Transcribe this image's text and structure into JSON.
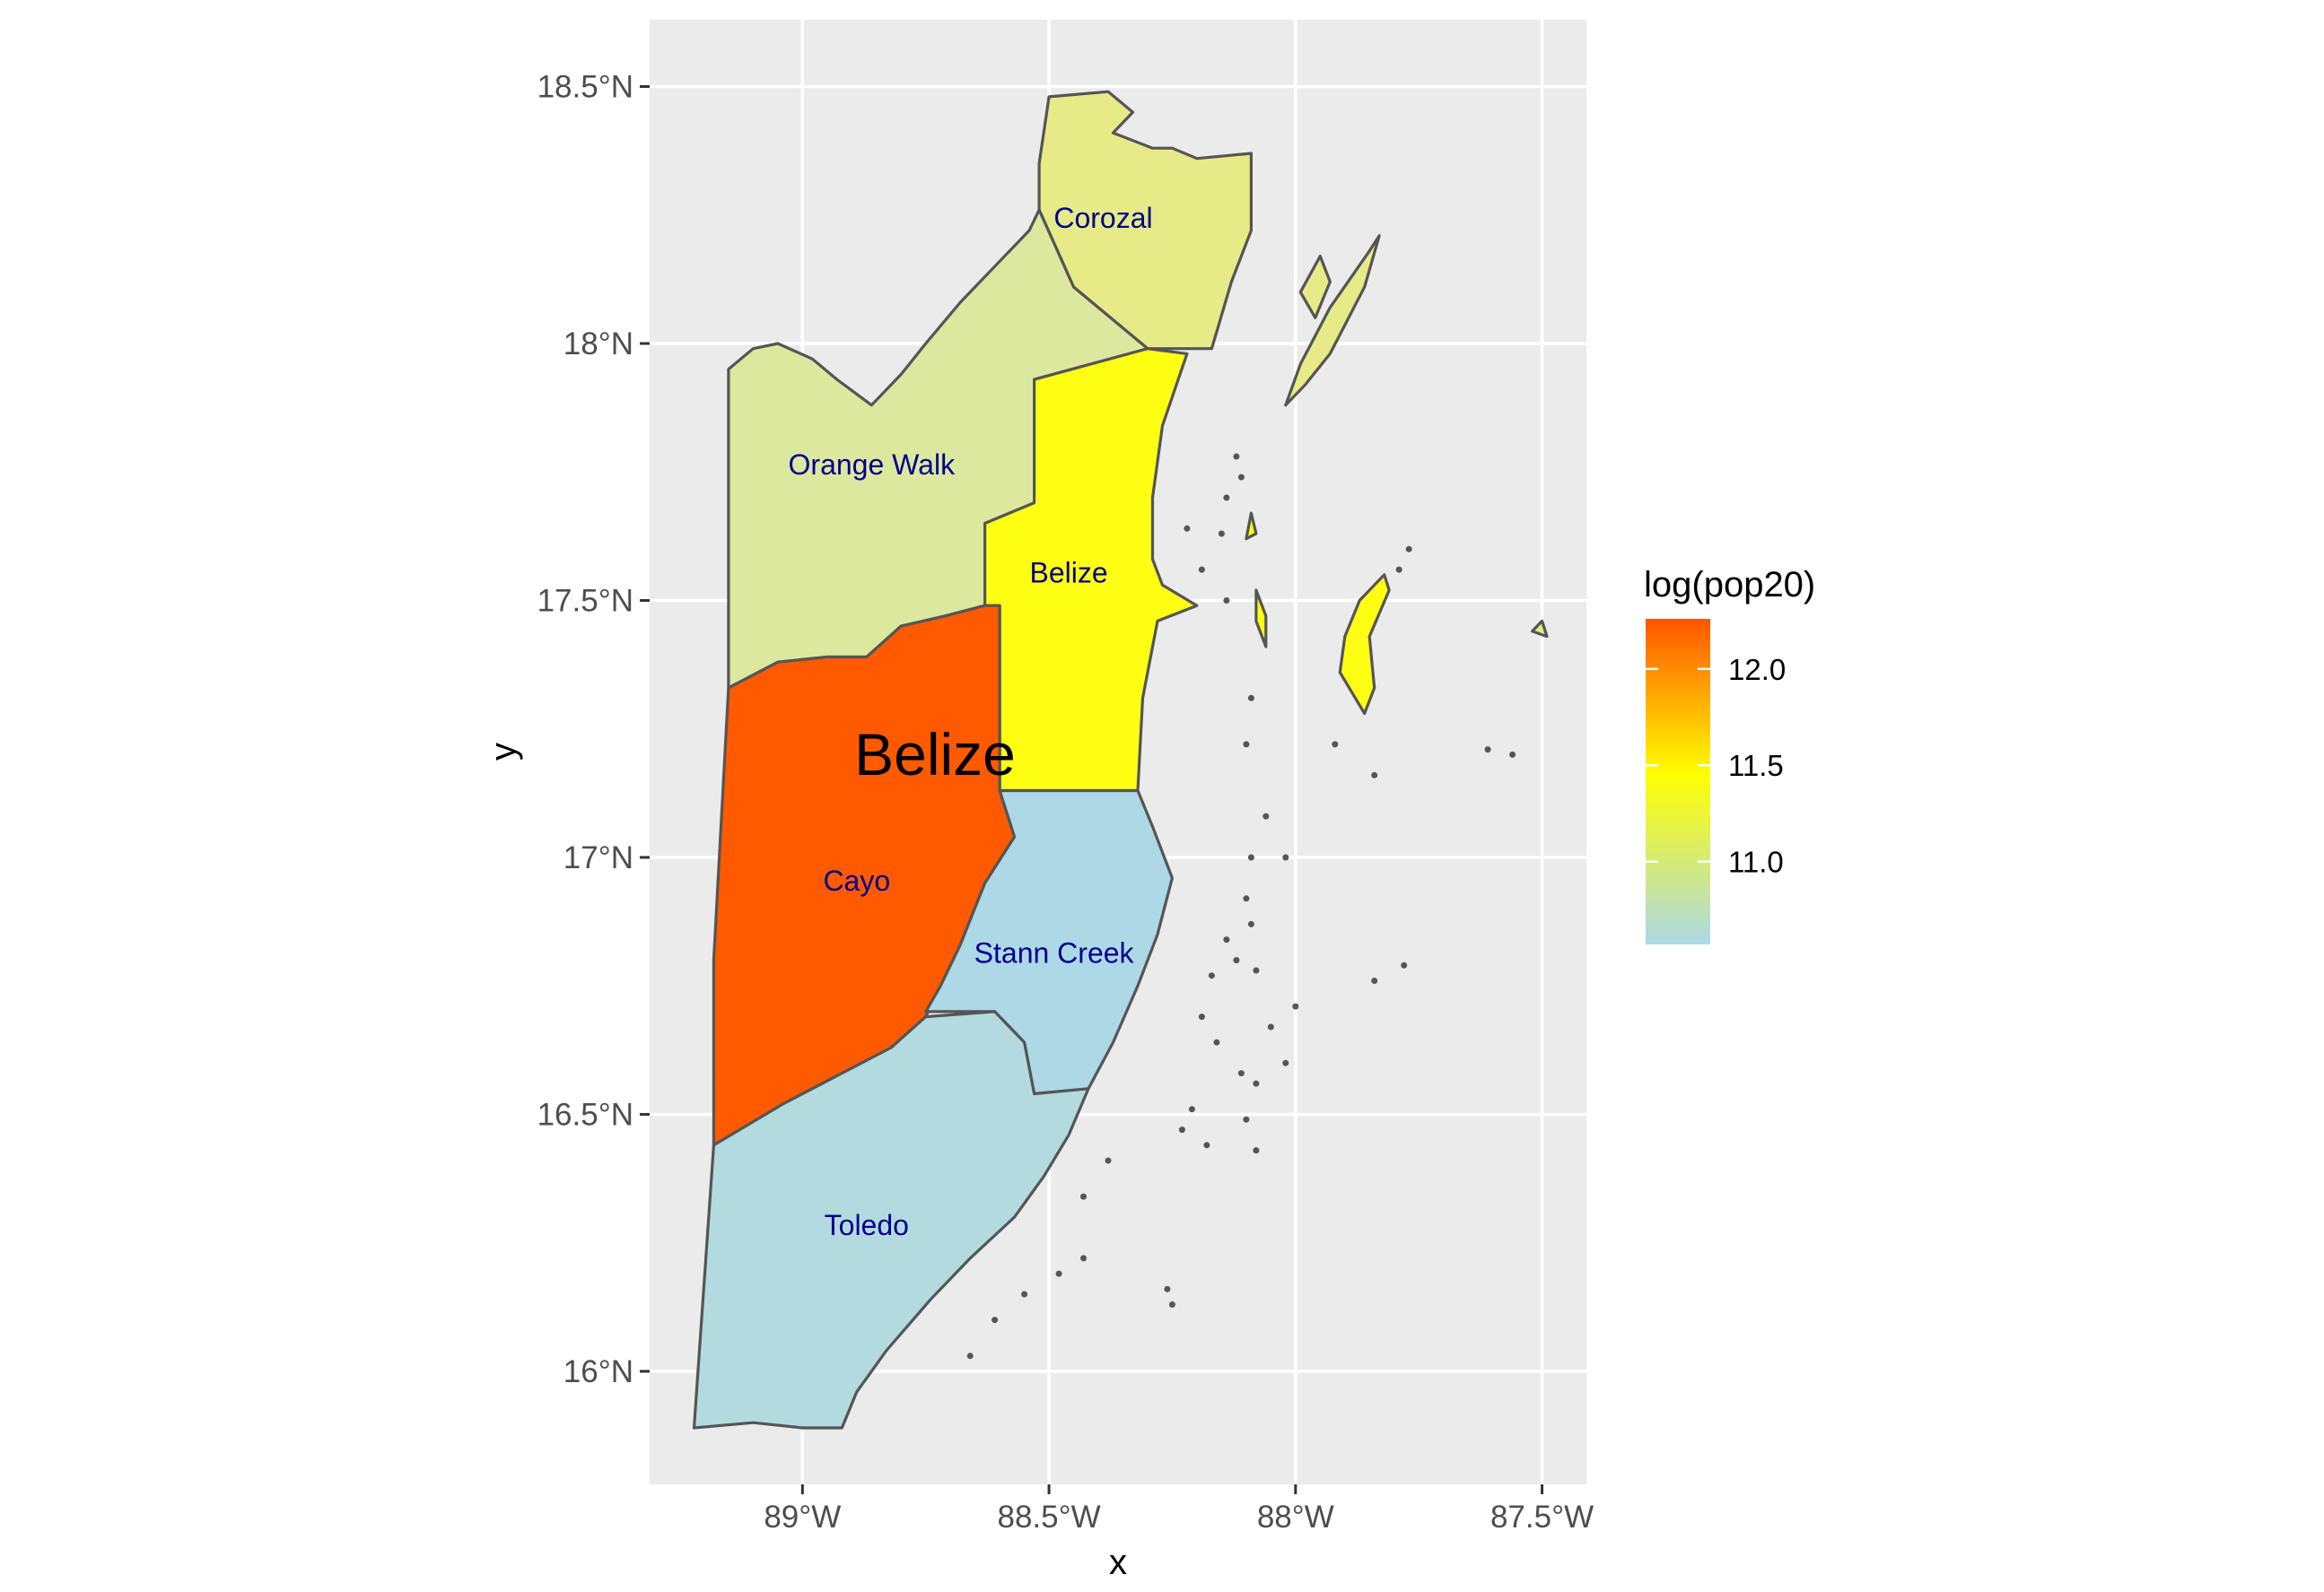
{
  "chart_data": {
    "type": "map",
    "region": "Belize",
    "title": "Belize",
    "xlabel": "x",
    "ylabel": "y",
    "x_ticks": [
      {
        "value": -89.0,
        "label": "89°W"
      },
      {
        "value": -88.5,
        "label": "88.5°W"
      },
      {
        "value": -88.0,
        "label": "88°W"
      },
      {
        "value": -87.5,
        "label": "87.5°W"
      }
    ],
    "y_ticks": [
      {
        "value": 16.0,
        "label": "16°N"
      },
      {
        "value": 16.5,
        "label": "16.5°N"
      },
      {
        "value": 17.0,
        "label": "17°N"
      },
      {
        "value": 17.5,
        "label": "17.5°N"
      },
      {
        "value": 18.0,
        "label": "18°N"
      },
      {
        "value": 18.5,
        "label": "18.5°N"
      }
    ],
    "xlim": [
      -89.31,
      -87.41
    ],
    "ylim": [
      15.78,
      18.63
    ],
    "grid": true,
    "fill_variable": "log(pop20)",
    "legend": {
      "title": "log(pop20)",
      "position": "right",
      "range": [
        10.57,
        12.26
      ],
      "breaks": [
        {
          "value": 12.0,
          "label": "12.0"
        },
        {
          "value": 11.5,
          "label": "11.5"
        },
        {
          "value": 11.0,
          "label": "11.0"
        }
      ],
      "color_stops": [
        {
          "value": 10.57,
          "color": "#ADD8E6"
        },
        {
          "value": 11.45,
          "color": "#FFFF00"
        },
        {
          "value": 12.26,
          "color": "#FF5500"
        }
      ]
    },
    "districts": [
      {
        "name": "Corozal",
        "log_pop20": 10.95,
        "fill": "#E6EB87",
        "label": {
          "lon": -88.39,
          "lat": 18.24
        },
        "outline": [
          [
            -88.5,
            18.48
          ],
          [
            -88.38,
            18.49
          ],
          [
            -88.33,
            18.45
          ],
          [
            -88.37,
            18.41
          ],
          [
            -88.29,
            18.38
          ],
          [
            -88.25,
            18.38
          ],
          [
            -88.2,
            18.36
          ],
          [
            -88.09,
            18.37
          ],
          [
            -88.09,
            18.22
          ],
          [
            -88.13,
            18.12
          ],
          [
            -88.17,
            17.99
          ],
          [
            -88.3,
            17.99
          ],
          [
            -88.45,
            18.11
          ],
          [
            -88.52,
            18.26
          ],
          [
            -88.52,
            18.35
          ]
        ]
      },
      {
        "name": "Orange Walk",
        "log_pop20": 10.8,
        "fill": "#DDE89F",
        "label": {
          "lon": -88.86,
          "lat": 17.76
        },
        "outline": [
          [
            -88.52,
            18.26
          ],
          [
            -88.45,
            18.11
          ],
          [
            -88.3,
            17.99
          ],
          [
            -88.53,
            17.93
          ],
          [
            -88.53,
            17.69
          ],
          [
            -88.63,
            17.65
          ],
          [
            -88.63,
            17.49
          ],
          [
            -88.71,
            17.47
          ],
          [
            -88.8,
            17.45
          ],
          [
            -88.87,
            17.39
          ],
          [
            -88.95,
            17.39
          ],
          [
            -89.05,
            17.38
          ],
          [
            -89.15,
            17.33
          ],
          [
            -89.15,
            17.95
          ],
          [
            -89.1,
            17.99
          ],
          [
            -89.05,
            18.0
          ],
          [
            -88.98,
            17.97
          ],
          [
            -88.93,
            17.93
          ],
          [
            -88.86,
            17.88
          ],
          [
            -88.8,
            17.94
          ],
          [
            -88.75,
            18.0
          ],
          [
            -88.68,
            18.08
          ],
          [
            -88.6,
            18.16
          ],
          [
            -88.54,
            18.22
          ]
        ]
      },
      {
        "name": "Belize",
        "log_pop20": 11.45,
        "fill": "#FFFF14",
        "label": {
          "lon": -88.46,
          "lat": 17.55
        },
        "outline": [
          [
            -88.53,
            17.93
          ],
          [
            -88.3,
            17.99
          ],
          [
            -88.22,
            17.98
          ],
          [
            -88.27,
            17.84
          ],
          [
            -88.29,
            17.7
          ],
          [
            -88.29,
            17.58
          ],
          [
            -88.27,
            17.53
          ],
          [
            -88.2,
            17.49
          ],
          [
            -88.28,
            17.46
          ],
          [
            -88.31,
            17.31
          ],
          [
            -88.32,
            17.13
          ],
          [
            -88.6,
            17.13
          ],
          [
            -88.6,
            17.28
          ],
          [
            -88.6,
            17.49
          ],
          [
            -88.63,
            17.49
          ],
          [
            -88.63,
            17.65
          ],
          [
            -88.53,
            17.69
          ]
        ]
      },
      {
        "name": "Cayo",
        "log_pop20": 12.26,
        "fill": "#FF5A00",
        "label": {
          "lon": -88.89,
          "lat": 16.95
        },
        "outline": [
          [
            -89.15,
            17.33
          ],
          [
            -89.05,
            17.38
          ],
          [
            -88.95,
            17.39
          ],
          [
            -88.87,
            17.39
          ],
          [
            -88.8,
            17.45
          ],
          [
            -88.71,
            17.47
          ],
          [
            -88.63,
            17.49
          ],
          [
            -88.6,
            17.49
          ],
          [
            -88.6,
            17.28
          ],
          [
            -88.6,
            17.13
          ],
          [
            -88.57,
            17.04
          ],
          [
            -88.63,
            16.95
          ],
          [
            -88.68,
            16.83
          ],
          [
            -88.72,
            16.75
          ],
          [
            -88.75,
            16.69
          ],
          [
            -88.82,
            16.63
          ],
          [
            -88.94,
            16.57
          ],
          [
            -89.04,
            16.52
          ],
          [
            -89.18,
            16.44
          ],
          [
            -89.18,
            16.8
          ]
        ]
      },
      {
        "name": "Stann Creek",
        "log_pop20": 10.57,
        "fill": "#ADD8E6",
        "label": {
          "lon": -88.49,
          "lat": 16.81
        },
        "outline": [
          [
            -88.6,
            17.13
          ],
          [
            -88.32,
            17.13
          ],
          [
            -88.29,
            17.06
          ],
          [
            -88.25,
            16.96
          ],
          [
            -88.28,
            16.85
          ],
          [
            -88.32,
            16.75
          ],
          [
            -88.37,
            16.64
          ],
          [
            -88.42,
            16.55
          ],
          [
            -88.53,
            16.54
          ],
          [
            -88.55,
            16.64
          ],
          [
            -88.61,
            16.7
          ],
          [
            -88.75,
            16.7
          ],
          [
            -88.72,
            16.75
          ],
          [
            -88.68,
            16.83
          ],
          [
            -88.63,
            16.95
          ],
          [
            -88.57,
            17.04
          ]
        ]
      },
      {
        "name": "Toledo",
        "log_pop20": 10.68,
        "fill": "#B3DBDF",
        "label": {
          "lon": -88.87,
          "lat": 16.28
        },
        "outline": [
          [
            -89.18,
            16.44
          ],
          [
            -89.04,
            16.52
          ],
          [
            -88.94,
            16.57
          ],
          [
            -88.82,
            16.63
          ],
          [
            -88.75,
            16.69
          ],
          [
            -88.61,
            16.7
          ],
          [
            -88.55,
            16.64
          ],
          [
            -88.53,
            16.54
          ],
          [
            -88.42,
            16.55
          ],
          [
            -88.46,
            16.46
          ],
          [
            -88.51,
            16.38
          ],
          [
            -88.57,
            16.3
          ],
          [
            -88.66,
            16.22
          ],
          [
            -88.74,
            16.14
          ],
          [
            -88.83,
            16.04
          ],
          [
            -88.89,
            15.96
          ],
          [
            -88.92,
            15.89
          ],
          [
            -89.0,
            15.89
          ],
          [
            -89.1,
            15.9
          ],
          [
            -89.22,
            15.89
          ]
        ]
      }
    ],
    "islands": [
      {
        "fill": "#E6EB87",
        "outline": [
          [
            -87.85,
            18.18
          ],
          [
            -87.83,
            18.21
          ],
          [
            -87.86,
            18.11
          ],
          [
            -87.93,
            17.98
          ],
          [
            -87.98,
            17.92
          ],
          [
            -88.02,
            17.88
          ],
          [
            -87.99,
            17.96
          ],
          [
            -87.93,
            18.07
          ]
        ]
      },
      {
        "fill": "#E6EB87",
        "outline": [
          [
            -87.95,
            18.17
          ],
          [
            -87.93,
            18.12
          ],
          [
            -87.96,
            18.05
          ],
          [
            -87.99,
            18.1
          ]
        ]
      },
      {
        "fill": "#FFFF14",
        "outline": [
          [
            -87.81,
            17.52
          ],
          [
            -87.82,
            17.55
          ],
          [
            -87.87,
            17.5
          ],
          [
            -87.9,
            17.43
          ],
          [
            -87.91,
            17.36
          ],
          [
            -87.86,
            17.28
          ],
          [
            -87.84,
            17.33
          ],
          [
            -87.85,
            17.43
          ]
        ]
      },
      {
        "fill": "#FFFF14",
        "outline": [
          [
            -88.08,
            17.52
          ],
          [
            -88.06,
            17.47
          ],
          [
            -88.06,
            17.41
          ],
          [
            -88.08,
            17.46
          ]
        ]
      },
      {
        "fill": "#FFFF14",
        "outline": [
          [
            -88.09,
            17.67
          ],
          [
            -88.08,
            17.63
          ],
          [
            -88.1,
            17.62
          ]
        ]
      },
      {
        "fill": "#E6EB87",
        "outline": [
          [
            -87.5,
            17.46
          ],
          [
            -87.52,
            17.44
          ],
          [
            -87.49,
            17.43
          ]
        ]
      }
    ],
    "cays": [
      [
        -88.11,
        17.74
      ],
      [
        -88.14,
        17.7
      ],
      [
        -88.12,
        17.78
      ],
      [
        -88.15,
        17.63
      ],
      [
        -88.19,
        17.56
      ],
      [
        -88.22,
        17.64
      ],
      [
        -88.14,
        17.5
      ],
      [
        -88.09,
        17.31
      ],
      [
        -88.1,
        17.22
      ],
      [
        -88.06,
        17.08
      ],
      [
        -88.09,
        17.0
      ],
      [
        -88.02,
        17.0
      ],
      [
        -88.1,
        16.92
      ],
      [
        -88.09,
        16.87
      ],
      [
        -88.14,
        16.84
      ],
      [
        -88.12,
        16.8
      ],
      [
        -88.17,
        16.77
      ],
      [
        -88.08,
        16.78
      ],
      [
        -88.19,
        16.69
      ],
      [
        -88.16,
        16.64
      ],
      [
        -88.11,
        16.58
      ],
      [
        -88.08,
        16.56
      ],
      [
        -88.21,
        16.51
      ],
      [
        -88.23,
        16.47
      ],
      [
        -88.18,
        16.44
      ],
      [
        -88.1,
        16.49
      ],
      [
        -88.08,
        16.43
      ],
      [
        -87.77,
        17.6
      ],
      [
        -87.79,
        17.56
      ],
      [
        -87.92,
        17.22
      ],
      [
        -87.84,
        17.16
      ],
      [
        -87.61,
        17.21
      ],
      [
        -87.56,
        17.2
      ],
      [
        -87.78,
        16.79
      ],
      [
        -87.84,
        16.76
      ],
      [
        -88.25,
        16.13
      ],
      [
        -88.26,
        16.16
      ],
      [
        -88.43,
        16.22
      ],
      [
        -88.48,
        16.19
      ],
      [
        -88.55,
        16.15
      ],
      [
        -88.61,
        16.1
      ],
      [
        -88.66,
        16.03
      ],
      [
        -88.43,
        16.34
      ],
      [
        -88.38,
        16.41
      ],
      [
        -88.02,
        16.6
      ],
      [
        -88.05,
        16.67
      ],
      [
        -88.0,
        16.71
      ]
    ]
  }
}
